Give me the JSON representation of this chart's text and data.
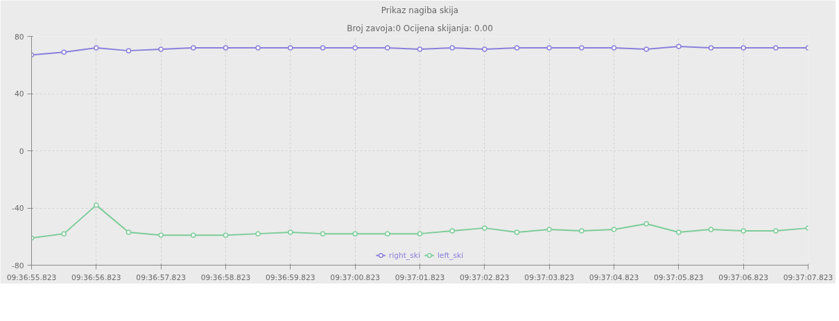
{
  "chart_data": {
    "type": "line",
    "title": "Prikaz nagiba skija",
    "subtitle": "Broj zavoja:0 Ocijena skijanja: 0.00",
    "categories": [
      "09:36:55.823",
      null,
      "09:36:56.823",
      null,
      "09:36:57.823",
      null,
      "09:36:58.823",
      null,
      "09:36:59.823",
      null,
      "09:37:00.823",
      null,
      "09:37:01.823",
      null,
      "09:37:02.823",
      null,
      "09:37:03.823",
      null,
      "09:37:04.823",
      null,
      "09:37:05.823",
      null,
      "09:37:06.823",
      null,
      "09:37:07.823"
    ],
    "series": [
      {
        "name": "right_ski",
        "color": "#8a7fdc",
        "values": [
          67,
          69,
          72,
          70,
          71,
          72,
          72,
          72,
          72,
          72,
          72,
          72,
          71,
          72,
          71,
          72,
          72,
          72,
          72,
          71,
          73,
          72,
          72,
          72,
          72
        ]
      },
      {
        "name": "left_ski",
        "color": "#7ccc98",
        "values": [
          -61,
          -58,
          -38,
          -57,
          -59,
          -59,
          -59,
          -58,
          -57,
          -58,
          -58,
          -58,
          -58,
          -56,
          -54,
          -57,
          -55,
          -56,
          -55,
          -51,
          -57,
          -55,
          -56,
          -56,
          -54
        ]
      }
    ],
    "ylim": [
      -80,
      80
    ],
    "yticks": [
      -80,
      -40,
      0,
      40,
      80
    ],
    "grid": true,
    "legend": "bottom",
    "marker": "circle",
    "line_style": "solid"
  }
}
